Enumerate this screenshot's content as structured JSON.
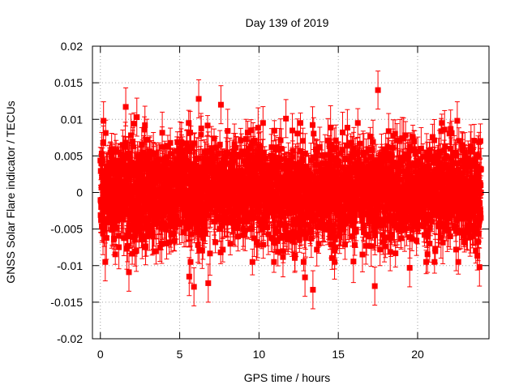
{
  "chart_data": {
    "type": "scatter",
    "title": "Day 139 of 2019",
    "xlabel": "GPS time / hours",
    "ylabel": "GNSS Solar Flare indicator / TECUs",
    "xlim": [
      -0.5,
      24.5
    ],
    "ylim": [
      -0.02,
      0.02
    ],
    "x_ticks": [
      0,
      5,
      10,
      15,
      20
    ],
    "x_tick_labels": [
      "0",
      "5",
      "10",
      "15",
      "20"
    ],
    "y_ticks": [
      -0.02,
      -0.015,
      -0.01,
      -0.005,
      0,
      0.005,
      0.01,
      0.015,
      0.02
    ],
    "y_tick_labels": [
      "-0.02",
      "-0.015",
      "-0.01",
      "-0.005",
      "0",
      "0.005",
      "0.01",
      "0.015",
      "0.02"
    ],
    "grid": true,
    "series": [
      {
        "name": "GNSS Solar Flare indicator",
        "color": "#ff0000",
        "marker": "square",
        "error_bars": true,
        "x_start": 0.0,
        "x_end": 24.0,
        "point_count": 2880,
        "typical_spread": 0.0045,
        "typical_error": 0.002,
        "notable_points": [
          {
            "x": 0.2,
            "y": 0.0098
          },
          {
            "x": 1.6,
            "y": 0.0117
          },
          {
            "x": 1.8,
            "y": -0.0109
          },
          {
            "x": 2.3,
            "y": 0.0103
          },
          {
            "x": 5.6,
            "y": -0.0115
          },
          {
            "x": 5.9,
            "y": -0.0129
          },
          {
            "x": 6.2,
            "y": 0.0128
          },
          {
            "x": 6.8,
            "y": -0.0124
          },
          {
            "x": 7.6,
            "y": 0.012
          },
          {
            "x": 11.7,
            "y": 0.0101
          },
          {
            "x": 12.9,
            "y": -0.0116
          },
          {
            "x": 13.4,
            "y": -0.0133
          },
          {
            "x": 17.3,
            "y": -0.0128
          },
          {
            "x": 17.5,
            "y": 0.014
          },
          {
            "x": 19.5,
            "y": -0.0103
          },
          {
            "x": 21.7,
            "y": 0.0086
          },
          {
            "x": 22.5,
            "y": 0.0098
          },
          {
            "x": 23.9,
            "y": -0.0102
          }
        ]
      }
    ]
  }
}
